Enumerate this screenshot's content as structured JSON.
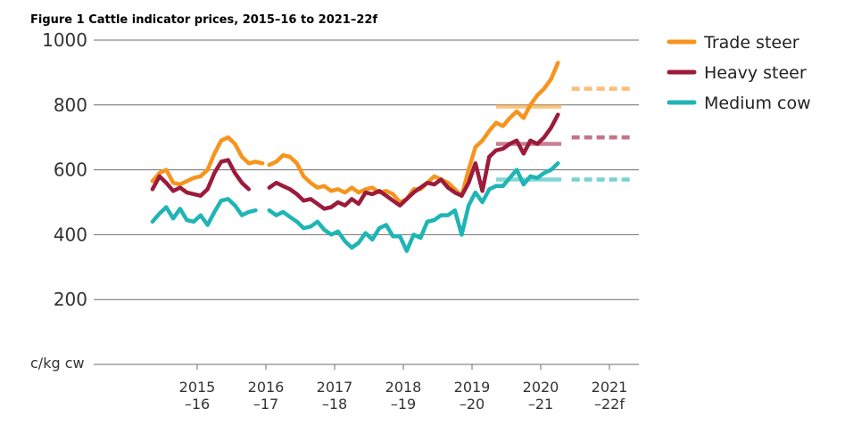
{
  "chart_data": {
    "type": "line",
    "title": "Figure 1 Cattle indicator prices, 2015–16 to 2021–22f",
    "ylabel": "c/kg cw",
    "ylim": [
      0,
      1000
    ],
    "yticks": [
      200,
      400,
      600,
      800,
      1000
    ],
    "xlim": [
      2014.0,
      2022.5
    ],
    "xticks": [
      {
        "value": 2015,
        "line1": "2015",
        "line2": "–16"
      },
      {
        "value": 2016,
        "line1": "2016",
        "line2": "–17"
      },
      {
        "value": 2017,
        "line1": "2017",
        "line2": "–18"
      },
      {
        "value": 2018,
        "line1": "2018",
        "line2": "–19"
      },
      {
        "value": 2019,
        "line1": "2019",
        "line2": "–20"
      },
      {
        "value": 2020,
        "line1": "2020",
        "line2": "–21"
      },
      {
        "value": 2021,
        "line1": "2021",
        "line2": "–22f"
      }
    ],
    "grid": true,
    "legend_position": "top-right",
    "series": [
      {
        "name": "Trade steer",
        "color": "#f7941d",
        "segments": [
          [
            [
              2014.35,
              565
            ],
            [
              2014.45,
              590
            ],
            [
              2014.55,
              600
            ],
            [
              2014.65,
              560
            ],
            [
              2014.75,
              555
            ],
            [
              2014.85,
              565
            ],
            [
              2014.95,
              575
            ],
            [
              2015.05,
              580
            ],
            [
              2015.15,
              600
            ],
            [
              2015.25,
              650
            ],
            [
              2015.35,
              690
            ],
            [
              2015.45,
              700
            ],
            [
              2015.55,
              680
            ],
            [
              2015.65,
              640
            ],
            [
              2015.75,
              620
            ],
            [
              2015.85,
              625
            ],
            [
              2015.95,
              620
            ],
            [
              2015.95,
              620
            ]
          ],
          [
            [
              2016.05,
              615
            ],
            [
              2016.15,
              625
            ],
            [
              2016.25,
              645
            ],
            [
              2016.35,
              640
            ],
            [
              2016.45,
              620
            ],
            [
              2016.55,
              580
            ],
            [
              2016.65,
              560
            ],
            [
              2016.75,
              545
            ],
            [
              2016.85,
              550
            ],
            [
              2016.95,
              535
            ],
            [
              2017.05,
              540
            ],
            [
              2017.15,
              530
            ],
            [
              2017.25,
              545
            ],
            [
              2017.35,
              530
            ],
            [
              2017.45,
              540
            ],
            [
              2017.55,
              545
            ],
            [
              2017.65,
              530
            ],
            [
              2017.75,
              535
            ],
            [
              2017.85,
              525
            ],
            [
              2017.95,
              500
            ],
            [
              2018.05,
              510
            ],
            [
              2018.15,
              540
            ],
            [
              2018.25,
              540
            ],
            [
              2018.35,
              560
            ],
            [
              2018.45,
              580
            ],
            [
              2018.55,
              570
            ],
            [
              2018.65,
              560
            ],
            [
              2018.75,
              540
            ],
            [
              2018.85,
              520
            ],
            [
              2018.95,
              600
            ],
            [
              2019.05,
              670
            ],
            [
              2019.15,
              690
            ],
            [
              2019.25,
              720
            ],
            [
              2019.35,
              745
            ],
            [
              2019.45,
              735
            ],
            [
              2019.55,
              760
            ],
            [
              2019.65,
              780
            ],
            [
              2019.75,
              760
            ],
            [
              2019.85,
              800
            ],
            [
              2019.95,
              830
            ],
            [
              2020.05,
              850
            ],
            [
              2020.15,
              880
            ],
            [
              2020.25,
              930
            ]
          ]
        ],
        "forecast": [
          {
            "from": 2019.35,
            "to": 2020.3,
            "value": 795
          },
          {
            "from": 2020.45,
            "to": 2021.3,
            "value": 850
          }
        ]
      },
      {
        "name": "Heavy steer",
        "color": "#9b1b3b",
        "segments": [
          [
            [
              2014.35,
              540
            ],
            [
              2014.45,
              580
            ],
            [
              2014.55,
              560
            ],
            [
              2014.65,
              535
            ],
            [
              2014.75,
              545
            ],
            [
              2014.85,
              530
            ],
            [
              2014.95,
              525
            ],
            [
              2015.05,
              520
            ],
            [
              2015.15,
              540
            ],
            [
              2015.25,
              590
            ],
            [
              2015.35,
              625
            ],
            [
              2015.45,
              630
            ],
            [
              2015.55,
              590
            ],
            [
              2015.65,
              560
            ],
            [
              2015.75,
              540
            ]
          ],
          [
            [
              2016.05,
              545
            ],
            [
              2016.15,
              560
            ],
            [
              2016.25,
              550
            ],
            [
              2016.35,
              540
            ],
            [
              2016.45,
              525
            ],
            [
              2016.55,
              505
            ],
            [
              2016.65,
              510
            ],
            [
              2016.75,
              495
            ],
            [
              2016.85,
              480
            ],
            [
              2016.95,
              485
            ],
            [
              2017.05,
              500
            ],
            [
              2017.15,
              490
            ],
            [
              2017.25,
              510
            ],
            [
              2017.35,
              495
            ],
            [
              2017.45,
              530
            ],
            [
              2017.55,
              525
            ],
            [
              2017.65,
              535
            ],
            [
              2017.75,
              520
            ],
            [
              2017.85,
              505
            ],
            [
              2017.95,
              490
            ],
            [
              2018.05,
              510
            ],
            [
              2018.15,
              530
            ],
            [
              2018.25,
              545
            ],
            [
              2018.35,
              560
            ],
            [
              2018.45,
              555
            ],
            [
              2018.55,
              570
            ],
            [
              2018.65,
              545
            ],
            [
              2018.75,
              530
            ],
            [
              2018.85,
              520
            ],
            [
              2018.95,
              560
            ],
            [
              2019.05,
              620
            ],
            [
              2019.15,
              535
            ],
            [
              2019.25,
              640
            ],
            [
              2019.35,
              660
            ],
            [
              2019.45,
              665
            ],
            [
              2019.55,
              680
            ],
            [
              2019.65,
              690
            ],
            [
              2019.75,
              650
            ],
            [
              2019.85,
              690
            ],
            [
              2019.95,
              680
            ],
            [
              2020.05,
              700
            ],
            [
              2020.15,
              730
            ],
            [
              2020.25,
              770
            ]
          ]
        ],
        "forecast": [
          {
            "from": 2019.35,
            "to": 2020.3,
            "value": 680
          },
          {
            "from": 2020.45,
            "to": 2021.3,
            "value": 700
          }
        ]
      },
      {
        "name": "Medium cow",
        "color": "#1fb5b4",
        "segments": [
          [
            [
              2014.35,
              440
            ],
            [
              2014.45,
              465
            ],
            [
              2014.55,
              485
            ],
            [
              2014.65,
              450
            ],
            [
              2014.75,
              480
            ],
            [
              2014.85,
              445
            ],
            [
              2014.95,
              440
            ],
            [
              2015.05,
              460
            ],
            [
              2015.15,
              430
            ],
            [
              2015.25,
              470
            ],
            [
              2015.35,
              505
            ],
            [
              2015.45,
              510
            ],
            [
              2015.55,
              490
            ],
            [
              2015.65,
              460
            ],
            [
              2015.75,
              470
            ],
            [
              2015.85,
              475
            ]
          ],
          [
            [
              2016.05,
              475
            ],
            [
              2016.15,
              460
            ],
            [
              2016.25,
              470
            ],
            [
              2016.35,
              455
            ],
            [
              2016.45,
              440
            ],
            [
              2016.55,
              420
            ],
            [
              2016.65,
              425
            ],
            [
              2016.75,
              440
            ],
            [
              2016.85,
              415
            ],
            [
              2016.95,
              400
            ],
            [
              2017.05,
              410
            ],
            [
              2017.15,
              380
            ],
            [
              2017.25,
              360
            ],
            [
              2017.35,
              375
            ],
            [
              2017.45,
              405
            ],
            [
              2017.55,
              385
            ],
            [
              2017.65,
              420
            ],
            [
              2017.75,
              430
            ],
            [
              2017.85,
              395
            ],
            [
              2017.95,
              395
            ],
            [
              2018.05,
              350
            ],
            [
              2018.15,
              400
            ],
            [
              2018.25,
              390
            ],
            [
              2018.35,
              440
            ],
            [
              2018.45,
              445
            ],
            [
              2018.55,
              460
            ],
            [
              2018.65,
              460
            ],
            [
              2018.75,
              475
            ],
            [
              2018.85,
              400
            ],
            [
              2018.95,
              490
            ],
            [
              2019.05,
              530
            ],
            [
              2019.15,
              500
            ],
            [
              2019.25,
              540
            ],
            [
              2019.35,
              550
            ],
            [
              2019.45,
              550
            ],
            [
              2019.55,
              575
            ],
            [
              2019.65,
              600
            ],
            [
              2019.75,
              555
            ],
            [
              2019.85,
              580
            ],
            [
              2019.95,
              575
            ],
            [
              2020.05,
              590
            ],
            [
              2020.15,
              600
            ],
            [
              2020.25,
              620
            ]
          ]
        ],
        "forecast": [
          {
            "from": 2019.35,
            "to": 2020.3,
            "value": 570
          },
          {
            "from": 2020.45,
            "to": 2021.3,
            "value": 570
          }
        ]
      }
    ]
  }
}
